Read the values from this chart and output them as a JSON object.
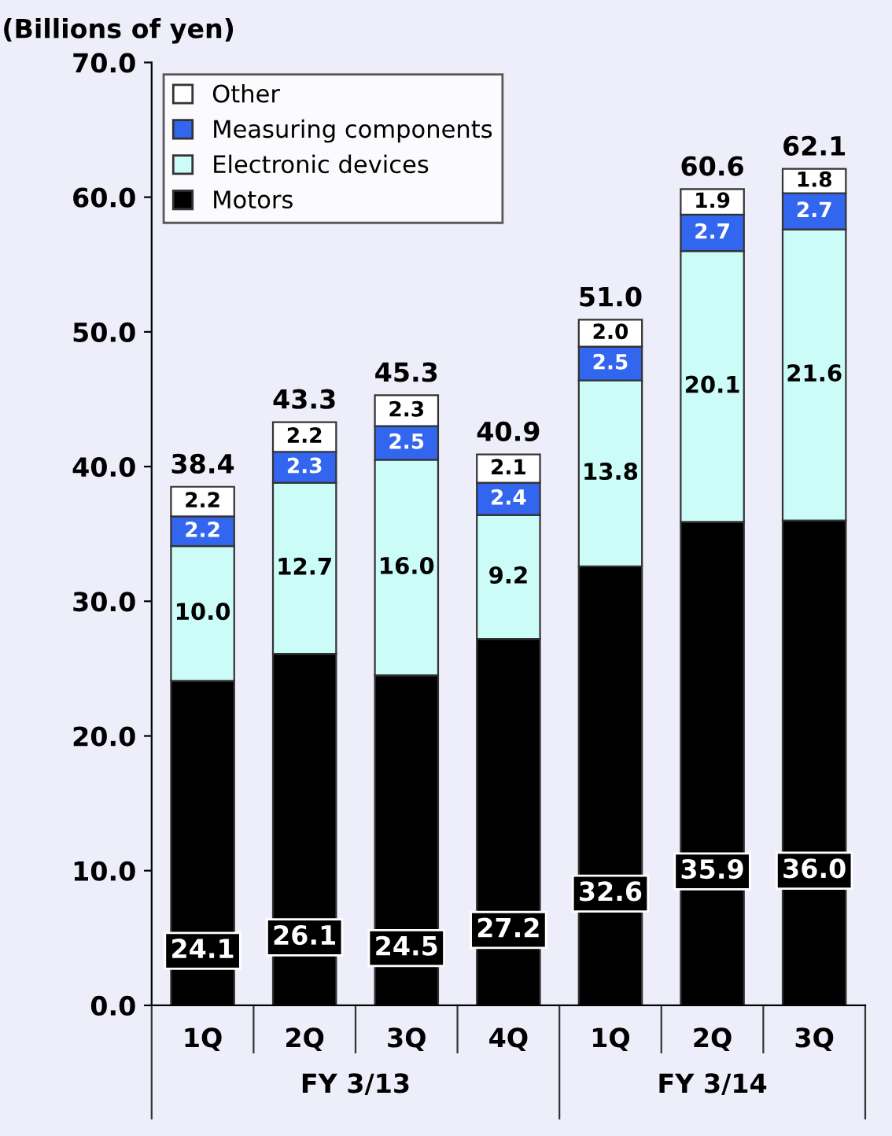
{
  "chart_data": {
    "type": "bar",
    "stacked": true,
    "ylabel": "(Billions of yen)",
    "categories": [
      "1Q",
      "2Q",
      "3Q",
      "4Q",
      "1Q",
      "2Q",
      "3Q"
    ],
    "series": [
      {
        "name": "Motors",
        "color": "#000000",
        "values": [
          24.1,
          26.1,
          24.5,
          27.2,
          32.6,
          35.9,
          36.0
        ],
        "value_labels": [
          "24.1",
          "26.1",
          "24.5",
          "27.2",
          "32.6",
          "35.9",
          "36.0"
        ]
      },
      {
        "name": "Electronic devices",
        "color": "#ccfcf8",
        "values": [
          10.0,
          12.7,
          16.0,
          9.2,
          13.8,
          20.1,
          21.6
        ],
        "value_labels": [
          "10.0",
          "12.7",
          "16.0",
          "9.2",
          "13.8",
          "20.1",
          "21.6"
        ]
      },
      {
        "name": "Measuring components",
        "color": "#3366ee",
        "values": [
          2.2,
          2.3,
          2.5,
          2.4,
          2.5,
          2.7,
          2.7
        ],
        "value_labels": [
          "2.2",
          "2.3",
          "2.5",
          "2.4",
          "2.5",
          "2.7",
          "2.7"
        ]
      },
      {
        "name": "Other",
        "color": "#ffffff",
        "values": [
          2.2,
          2.2,
          2.3,
          2.1,
          2.0,
          1.9,
          1.8
        ],
        "value_labels": [
          "2.2",
          "2.2",
          "2.3",
          "2.1",
          "2.0",
          "1.9",
          "1.8"
        ]
      }
    ],
    "totals": [
      "38.4",
      "43.3",
      "45.3",
      "40.9",
      "51.0",
      "60.6",
      "62.1"
    ],
    "ylim": [
      0,
      70
    ],
    "yticks": [
      {
        "value": 0,
        "label": "0.0"
      },
      {
        "value": 10,
        "label": "10.0"
      },
      {
        "value": 20,
        "label": "20.0"
      },
      {
        "value": 30,
        "label": "30.0"
      },
      {
        "value": 40,
        "label": "40.0"
      },
      {
        "value": 50,
        "label": "50.0"
      },
      {
        "value": 60,
        "label": "60.0"
      },
      {
        "value": 70,
        "label": "70.0"
      }
    ],
    "grid": false,
    "legend": "top left",
    "annotations": [
      "FY 3/13",
      "FY 3/14"
    ]
  }
}
